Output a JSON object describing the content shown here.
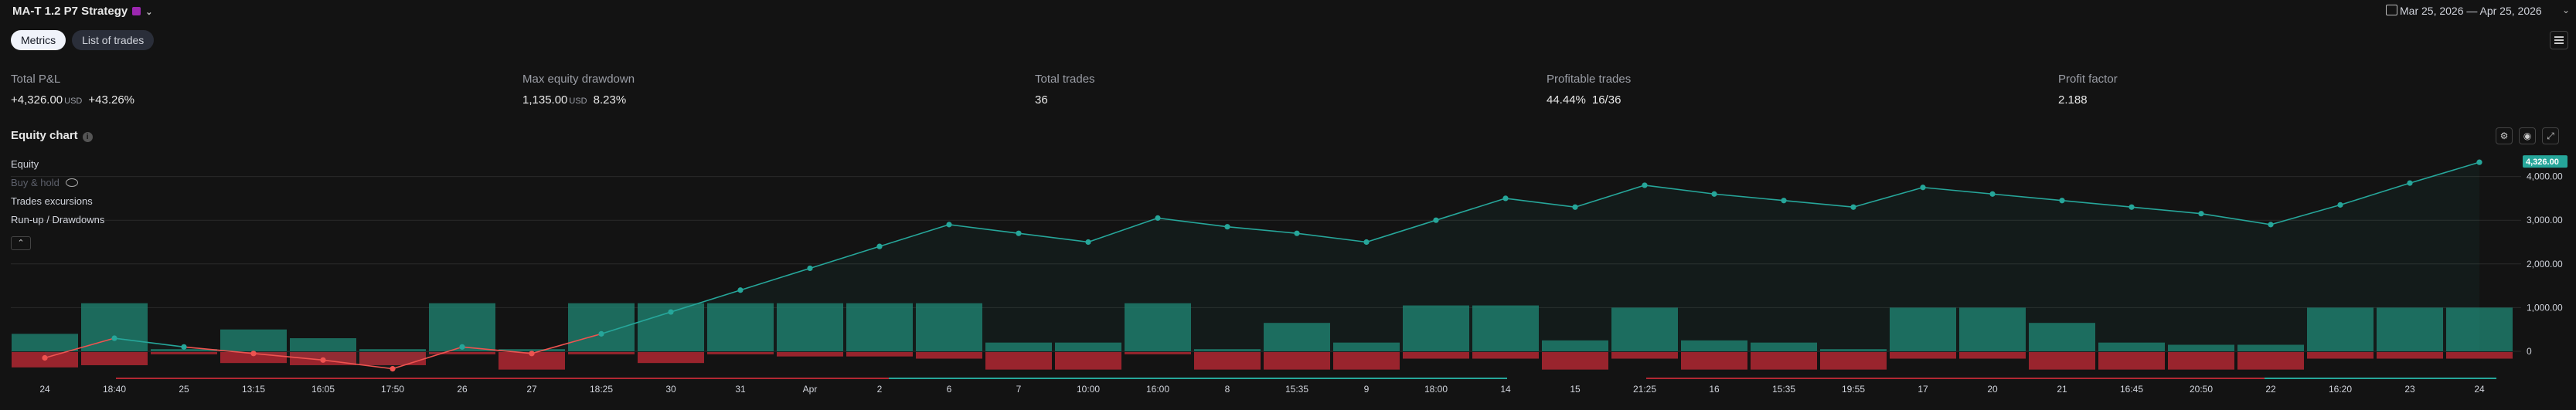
{
  "header": {
    "strategy_title": "MA-T 1.2 P7 Strategy",
    "date_range": "Mar 25, 2026 — Apr 25, 2026"
  },
  "tabs": [
    {
      "label": "Metrics",
      "active": true
    },
    {
      "label": "List of trades",
      "active": false
    }
  ],
  "metrics": {
    "total_pnl": {
      "label": "Total P&L",
      "value": "+4,326.00",
      "unit": "USD",
      "percent": "+43.26%"
    },
    "max_drawdown": {
      "label": "Max equity drawdown",
      "value": "1,135.00",
      "unit": "USD",
      "percent": "8.23%"
    },
    "total_trades": {
      "label": "Total trades",
      "value": "36"
    },
    "profitable_trades": {
      "label": "Profitable trades",
      "value": "44.44%",
      "ratio": "16/36"
    },
    "profit_factor": {
      "label": "Profit factor",
      "value": "2.188"
    }
  },
  "equity_chart": {
    "title": "Equity chart",
    "legend": {
      "equity": "Equity",
      "buy_hold": "Buy & hold",
      "trades_excursions": "Trades excursions",
      "runup_drawdowns": "Run-up / Drawdowns"
    },
    "current_value_label": "4,326.00"
  },
  "colors": {
    "equity_line": "#26a69a",
    "runup_bar": "#1e7a6a",
    "drawdown_bar": "#b22833",
    "negative_equity": "#ef5350",
    "background": "#131313"
  },
  "icons": [
    "calendar-icon",
    "list-icon",
    "info-icon",
    "eye-icon",
    "chevron-up-icon",
    "settings-icon",
    "camera-icon",
    "fullscreen-icon"
  ],
  "chart_data": {
    "type": "line",
    "y_ticks": [
      "4,000.00",
      "3,000.00",
      "2,000.00",
      "1,000.00",
      "0"
    ],
    "y_tick_values": [
      4000,
      3000,
      2000,
      1000,
      0
    ],
    "ylim": [
      -400,
      4600
    ],
    "x_labels": [
      "24",
      "18:40",
      "25",
      "13:15",
      "16:05",
      "17:50",
      "26",
      "27",
      "18:25",
      "30",
      "31",
      "Apr",
      "2",
      "6",
      "7",
      "10:00",
      "16:00",
      "8",
      "15:35",
      "9",
      "18:00",
      "14",
      "15",
      "21:25",
      "16",
      "15:35",
      "19:55",
      "17",
      "20",
      "21",
      "16:45",
      "20:50",
      "22",
      "16:20",
      "23",
      "24"
    ],
    "series": [
      {
        "name": "Equity",
        "values": [
          -150,
          300,
          100,
          -50,
          -200,
          -400,
          100,
          -50,
          400,
          900,
          1400,
          1900,
          2400,
          2900,
          2700,
          2500,
          3050,
          2850,
          2700,
          2500,
          3000,
          3500,
          3300,
          3800,
          3600,
          3450,
          3300,
          3750,
          3600,
          3450,
          3300,
          3150,
          2900,
          3350,
          3850,
          4326
        ]
      },
      {
        "name": "Run-up / Drawdowns",
        "runup": [
          400,
          1100,
          50,
          500,
          300,
          50,
          1100,
          50,
          1100,
          1100,
          1100,
          1100,
          1100,
          1100,
          200,
          200,
          1100,
          50,
          650,
          200,
          1050,
          1050,
          250,
          1000,
          250,
          200,
          50,
          1000,
          1000,
          650,
          200,
          150,
          150,
          1000,
          1000,
          1000
        ],
        "drawdown": [
          350,
          300,
          50,
          250,
          300,
          300,
          50,
          400,
          50,
          250,
          50,
          100,
          100,
          150,
          400,
          400,
          50,
          400,
          400,
          400,
          150,
          150,
          400,
          150,
          400,
          400,
          400,
          150,
          150,
          400,
          400,
          400,
          400,
          150,
          150,
          150
        ]
      }
    ],
    "grid": true,
    "legend": "top-left"
  }
}
